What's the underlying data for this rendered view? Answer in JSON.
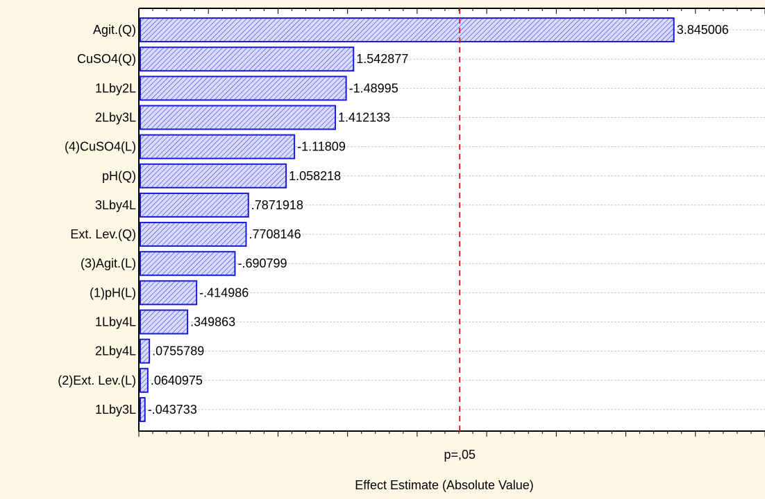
{
  "chart_data": {
    "type": "bar",
    "orientation": "horizontal",
    "title": "",
    "xlabel": "Effect Estimate (Absolute Value)",
    "ylabel": "",
    "categories": [
      "Agit.(Q)",
      "CuSO4(Q)",
      "1Lby2L",
      "2Lby3L",
      "(4)CuSO4(L)",
      "pH(Q)",
      "3Lby4L",
      "Ext. Lev.(Q)",
      "(3)Agit.(L)",
      "(1)pH(L)",
      "1Lby4L",
      "2Lby4L",
      "(2)Ext. Lev.(L)",
      "1Lby3L"
    ],
    "values": [
      3.845006,
      1.542877,
      1.48995,
      1.412133,
      1.11809,
      1.058218,
      0.7871918,
      0.7708146,
      0.690799,
      0.414986,
      0.349863,
      0.0755789,
      0.0640975,
      0.043733
    ],
    "value_labels": [
      "3.845006",
      "1.542877",
      "-1.48995",
      "1.412133",
      "-1.11809",
      "1.058218",
      ".7871918",
      ".7708146",
      "-.690799",
      "-.414986",
      ".349863",
      ".0755789",
      ".0640975",
      "-.043733"
    ],
    "reference_line": {
      "label": "p=,05",
      "value": 2.306
    },
    "xlim": [
      0,
      4.5
    ],
    "grid": true,
    "colors": {
      "background": "#fdf8e6",
      "plot_background": "#ffffff",
      "bar_fill": "#d8dcff",
      "bar_stroke": "#1a1ad6",
      "reference_line": "#d42020",
      "grid": "#c8c8c8"
    }
  }
}
